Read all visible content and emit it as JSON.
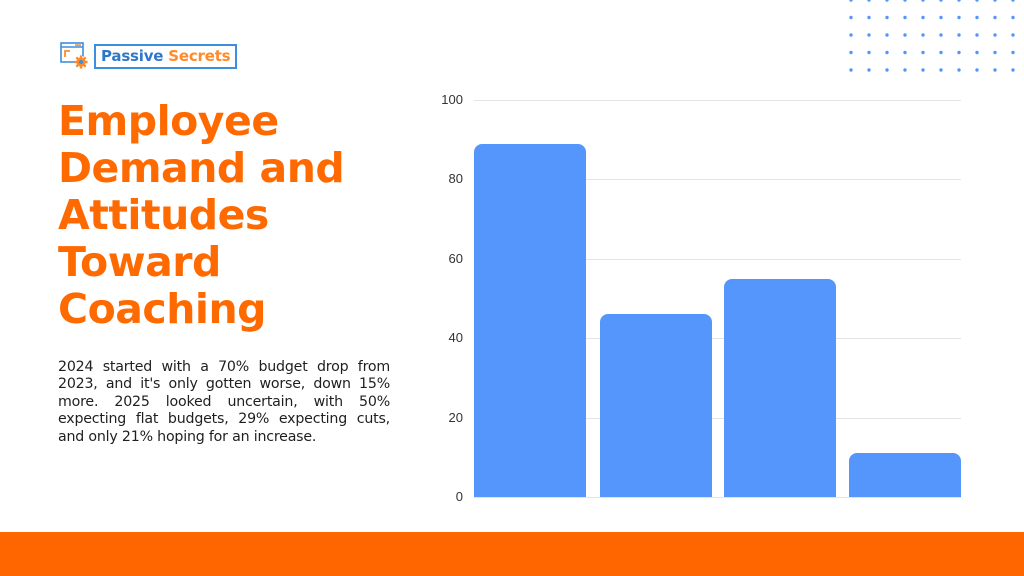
{
  "logo": {
    "word1": "Passive",
    "word2": "Secrets",
    "icon": "browser-gear-icon",
    "colors": {
      "blue": "#2F78C8",
      "orange": "#FF8A2A"
    }
  },
  "title": {
    "lines": [
      "Employee",
      "Demand and",
      "Attitudes",
      "Toward",
      "Coaching"
    ],
    "color": "#FF6A00"
  },
  "body": {
    "text": "2024 started with a 70% budget drop from 2023, and it's only gotten worse, down 15% more. 2025 looked uncertain, with 50% expecting flat budgets, 29% expecting cuts, and only 21% hoping for an increase."
  },
  "decor": {
    "dot_grid_color": "#5596FC",
    "footer_band_color": "#FF6600"
  },
  "chart_data": {
    "type": "bar",
    "title": "",
    "xlabel": "",
    "ylabel": "",
    "categories": [
      "",
      "",
      "",
      ""
    ],
    "values": [
      89,
      46,
      55,
      11
    ],
    "ylim": [
      0,
      100
    ],
    "yticks": [
      0,
      20,
      40,
      60,
      80,
      100
    ],
    "ytick_labels": [
      "0",
      "20",
      "40",
      "60",
      "80",
      "100"
    ],
    "grid": true,
    "legend": null,
    "bar_color": "#5596FC"
  }
}
